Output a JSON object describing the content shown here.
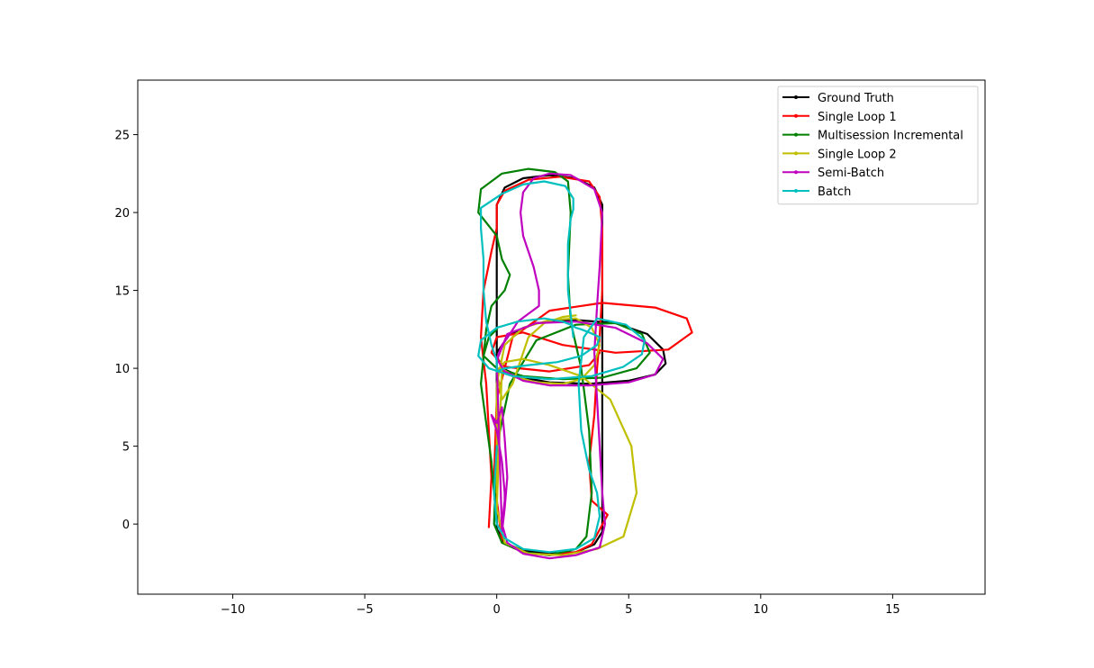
{
  "chart_data": {
    "type": "line",
    "title": "",
    "xlabel": "",
    "ylabel": "",
    "xlim": [
      -13.6,
      18.5
    ],
    "ylim": [
      -4.5,
      28.5
    ],
    "xticks": [
      -10,
      -5,
      0,
      5,
      10,
      15
    ],
    "yticks": [
      0,
      5,
      10,
      15,
      20,
      25
    ],
    "xtick_labels": [
      "−10",
      "−5",
      "0",
      "5",
      "10",
      "15"
    ],
    "ytick_labels": [
      "0",
      "5",
      "10",
      "15",
      "20",
      "25"
    ],
    "grid": false,
    "legend": "top-right",
    "series": [
      {
        "name": "Ground Truth",
        "color": "#000000",
        "marker": "dot",
        "x": [
          0.0,
          0.0,
          0.0,
          0.3,
          1.0,
          2.0,
          3.0,
          3.7,
          4.0,
          4.0,
          4.0,
          4.0,
          4.0,
          3.7,
          3.0,
          2.0,
          1.0,
          0.3,
          0.0,
          0.0,
          0.0,
          0.0,
          0.0,
          0.5,
          1.5,
          3.0,
          4.5,
          5.7,
          6.3,
          6.4,
          6.0,
          5.0,
          3.5,
          2.0,
          1.0,
          0.2,
          0.0,
          0.0
        ],
        "y": [
          11.0,
          16.0,
          20.5,
          21.6,
          22.2,
          22.4,
          22.2,
          21.6,
          20.5,
          16.0,
          10.0,
          3.0,
          -0.5,
          -1.3,
          -1.8,
          -1.9,
          -1.7,
          -1.2,
          -0.3,
          3.0,
          8.0,
          10.5,
          11.0,
          12.2,
          12.9,
          13.1,
          12.9,
          12.2,
          11.2,
          10.3,
          9.6,
          9.2,
          9.0,
          9.1,
          9.4,
          10.0,
          10.8,
          11.0
        ]
      },
      {
        "name": "Single Loop 1",
        "color": "#ff0000",
        "marker": "dot",
        "x": [
          -0.3,
          -0.2,
          -0.3,
          -0.4,
          -0.6,
          -0.5,
          -0.2,
          0.0,
          0.0,
          0.3,
          1.2,
          2.4,
          3.5,
          3.9,
          4.0,
          4.0,
          3.9,
          3.8,
          3.7,
          3.5,
          3.6,
          4.2,
          3.6,
          3.0,
          2.0,
          1.0,
          0.2,
          -0.1,
          0.0,
          0.6,
          2.0,
          4.0,
          6.0,
          7.2,
          7.4,
          6.5,
          4.5,
          2.5,
          1.0,
          0.0,
          -0.2,
          0.3,
          2.0,
          3.5,
          3.9
        ],
        "y": [
          -0.2,
          3.0,
          6.0,
          9.0,
          12.0,
          15.0,
          17.5,
          19.0,
          20.5,
          21.4,
          22.1,
          22.3,
          22.0,
          21.0,
          19.0,
          15.0,
          12.0,
          10.0,
          7.0,
          4.0,
          1.5,
          0.6,
          -1.3,
          -1.8,
          -2.0,
          -1.8,
          -1.2,
          3.0,
          8.0,
          12.0,
          13.7,
          14.2,
          13.9,
          13.2,
          12.3,
          11.2,
          11.0,
          11.5,
          12.3,
          12.0,
          11.0,
          10.1,
          9.8,
          10.2,
          11.0
        ]
      },
      {
        "name": "Multisession Incremental",
        "color": "#008000",
        "marker": "dot",
        "x": [
          0.0,
          -0.2,
          -0.6,
          -0.4,
          -0.2,
          0.3,
          0.5,
          0.2,
          0.0,
          -0.7,
          -0.6,
          0.2,
          1.2,
          2.2,
          2.7,
          2.8,
          2.7,
          2.8,
          3.2,
          3.5,
          3.6,
          3.4,
          3.0,
          2.0,
          1.0,
          0.2,
          -0.1,
          0.0,
          0.5,
          1.5,
          3.0,
          4.5,
          5.5,
          5.8,
          5.3,
          4.0,
          2.5,
          1.0,
          0.0,
          -0.5,
          -0.3,
          0.0
        ],
        "y": [
          0.0,
          4.0,
          9.0,
          12.5,
          14.0,
          15.0,
          16.0,
          17.0,
          18.5,
          20.0,
          21.5,
          22.5,
          22.8,
          22.6,
          22.0,
          20.0,
          16.0,
          13.0,
          10.0,
          6.0,
          2.0,
          -0.8,
          -1.6,
          -2.0,
          -1.8,
          -1.2,
          0.0,
          5.0,
          9.0,
          11.8,
          12.8,
          12.9,
          12.2,
          11.0,
          10.0,
          9.4,
          9.3,
          9.5,
          10.0,
          10.8,
          12.0,
          12.5
        ]
      },
      {
        "name": "Single Loop 2",
        "color": "#bfbf00",
        "marker": "dot",
        "x": [
          0.0,
          0.0,
          0.3,
          1.0,
          2.0,
          3.0,
          3.6,
          3.9,
          3.7,
          3.2,
          2.5,
          1.5,
          0.6,
          0.2,
          0.0,
          0.3,
          1.2,
          2.5,
          3.8,
          4.8,
          5.3,
          5.1,
          4.3,
          3.2,
          2.0,
          1.0,
          0.3,
          0.0,
          0.2,
          0.6,
          1.2,
          1.8,
          2.5,
          3.0
        ],
        "y": [
          2.0,
          9.0,
          11.5,
          12.6,
          13.1,
          13.2,
          12.6,
          11.5,
          10.2,
          9.3,
          9.0,
          9.1,
          9.5,
          10.0,
          1.0,
          -1.2,
          -1.9,
          -2.0,
          -1.6,
          -0.8,
          2.0,
          5.0,
          8.0,
          9.5,
          10.2,
          10.6,
          10.4,
          9.8,
          8.0,
          9.0,
          12.0,
          12.9,
          13.3,
          13.4
        ]
      },
      {
        "name": "Semi-Batch",
        "color": "#bf00bf",
        "marker": "dot",
        "x": [
          0.3,
          0.2,
          0.0,
          -0.2,
          0.0,
          0.2,
          0.3,
          0.4,
          0.3,
          0.2,
          0.0,
          0.4,
          1.5,
          3.0,
          4.5,
          5.7,
          6.3,
          6.0,
          5.0,
          3.5,
          2.0,
          1.0,
          0.3,
          0.0,
          0.2,
          0.5,
          0.8,
          1.2,
          1.6,
          1.6,
          1.4,
          1.0,
          0.9,
          1.0,
          1.4,
          2.0,
          2.8,
          3.7,
          4.0,
          3.9,
          3.8,
          3.7,
          3.8,
          3.9,
          4.0,
          4.1,
          3.9,
          3.0,
          2.0,
          1.0,
          0.4,
          0.2,
          0.3,
          0.3
        ],
        "y": [
          2.0,
          4.0,
          6.0,
          7.0,
          6.5,
          7.5,
          5.5,
          3.0,
          1.0,
          -0.5,
          10.5,
          12.2,
          12.9,
          13.0,
          12.6,
          11.6,
          10.6,
          9.6,
          9.1,
          8.9,
          8.9,
          9.2,
          9.8,
          10.6,
          11.5,
          12.2,
          13.0,
          13.5,
          14.0,
          15.0,
          16.5,
          18.5,
          20.0,
          21.3,
          22.2,
          22.5,
          22.4,
          21.5,
          20.0,
          16.5,
          14.0,
          11.0,
          8.0,
          5.0,
          2.0,
          0.0,
          -1.5,
          -2.0,
          -2.2,
          -1.9,
          -1.2,
          0.0,
          1.5,
          2.0
        ]
      },
      {
        "name": "Batch",
        "color": "#00bfbf",
        "marker": "dot",
        "x": [
          2.9,
          2.7,
          2.7,
          2.8,
          2.9,
          2.9,
          2.6,
          1.8,
          1.0,
          0.2,
          -0.6,
          -0.6,
          -0.5,
          -0.5,
          -0.4,
          -0.2,
          0.0,
          0.0,
          0.3,
          1.2,
          2.3,
          3.2,
          3.8,
          3.9,
          3.5,
          3.2,
          3.0,
          2.8,
          2.5,
          1.8,
          0.8,
          0.0,
          -0.6,
          -0.7,
          -0.3,
          0.6,
          2.0,
          3.6,
          4.8,
          5.5,
          5.6,
          4.9,
          3.8,
          3.3,
          3.1,
          3.2,
          3.5,
          3.8,
          3.9,
          3.7,
          3.0,
          2.0,
          1.0,
          0.3,
          0.0,
          -0.1,
          0.0
        ],
        "y": [
          12.0,
          15.0,
          18.0,
          19.6,
          20.2,
          20.9,
          21.7,
          22.0,
          21.8,
          21.2,
          20.3,
          19.0,
          17.0,
          15.0,
          13.0,
          11.5,
          10.5,
          9.8,
          10.0,
          10.2,
          10.4,
          10.8,
          11.5,
          12.0,
          12.3,
          12.5,
          12.6,
          12.8,
          13.0,
          13.2,
          13.0,
          12.6,
          11.8,
          10.8,
          10.0,
          9.5,
          9.3,
          9.5,
          10.1,
          10.9,
          11.8,
          12.8,
          13.2,
          12.0,
          9.0,
          6.0,
          3.5,
          2.0,
          0.5,
          -0.9,
          -1.6,
          -1.8,
          -1.6,
          -0.9,
          0.0,
          2.0,
          5.0
        ]
      }
    ]
  }
}
